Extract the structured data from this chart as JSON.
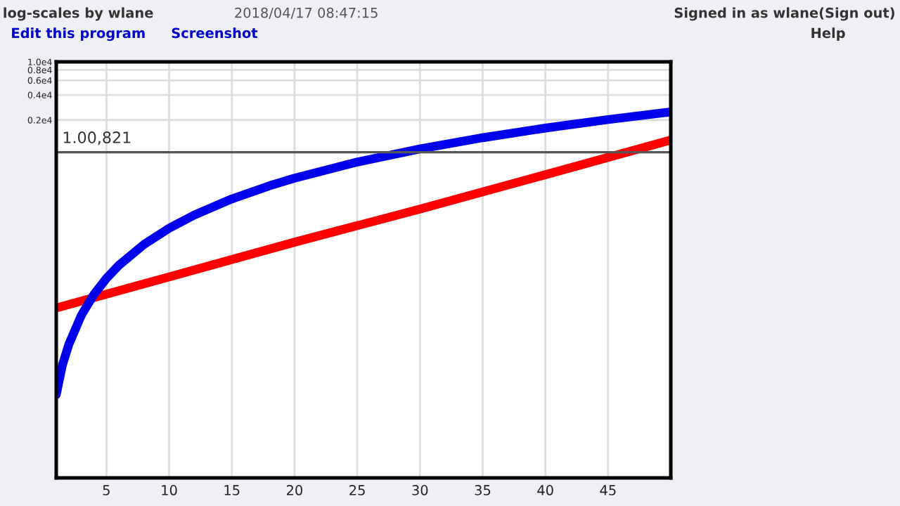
{
  "chart_data": {
    "type": "line",
    "title": "log-scales by wlane",
    "subtitle": "2018/04/17 08:47:15",
    "annotations": [
      "Edit this program",
      "Screenshot",
      "Signed in as wlane(Sign out)",
      "Help"
    ],
    "log": "y",
    "grid": true,
    "line_style": "solid",
    "xlim": [
      1,
      50
    ],
    "xticks": [
      5,
      10,
      15,
      20,
      25,
      30,
      35,
      40,
      45
    ],
    "ylim": [
      0.1,
      10000
    ],
    "yticks": [
      {
        "value": 2000,
        "label": "0.2e4"
      },
      {
        "value": 4000,
        "label": "0.4e4"
      },
      {
        "value": 6000,
        "label": "0.6e4"
      },
      {
        "value": 8000,
        "label": "0.8e4"
      },
      {
        "value": 10000,
        "label": "1.0e4"
      }
    ],
    "ref_lines": [
      {
        "axis": "y",
        "value": 821,
        "label": "1.00,821",
        "color": "#555555"
      }
    ],
    "series": [
      {
        "color": "#ff0000",
        "x": [
          1,
          10,
          20,
          30,
          40,
          50
        ],
        "values": [
          11,
          26,
          68,
          170,
          440,
          1150
        ]
      },
      {
        "color": "#0000ee",
        "x": [
          1,
          1.5,
          2,
          3,
          4,
          5,
          6,
          8,
          10,
          12,
          15,
          18,
          20,
          25,
          30,
          35,
          40,
          45,
          50
        ],
        "values": [
          1,
          2.3,
          4,
          9,
          16,
          25,
          36,
          64,
          100,
          144,
          225,
          324,
          400,
          625,
          900,
          1225,
          1600,
          2025,
          2500
        ]
      }
    ]
  }
}
